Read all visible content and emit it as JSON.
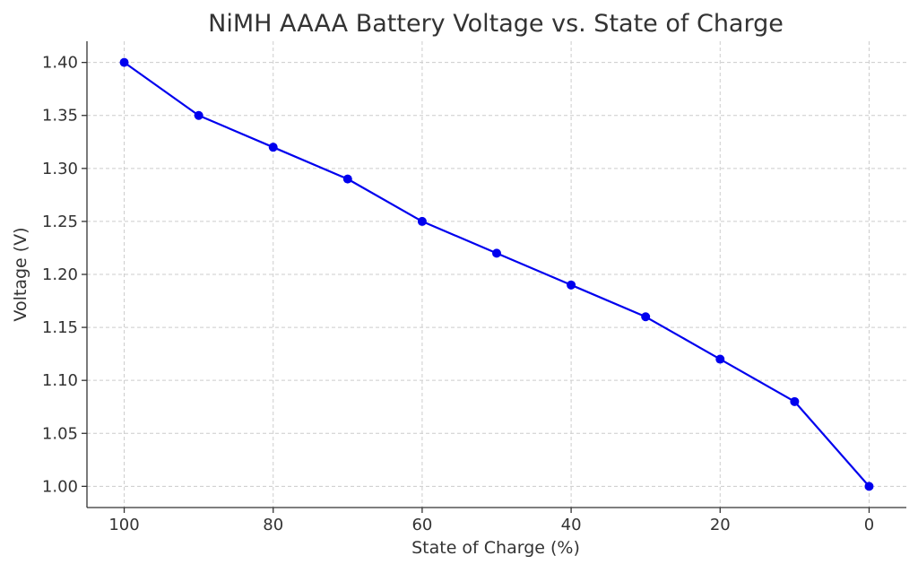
{
  "chart_data": {
    "type": "line",
    "title": "NiMH AAAA Battery Voltage vs. State of Charge",
    "xlabel": "State of Charge (%)",
    "ylabel": "Voltage (V)",
    "x_inverted": true,
    "xlim": [
      105,
      -5
    ],
    "ylim": [
      0.98,
      1.42
    ],
    "x_ticks": [
      100,
      80,
      60,
      40,
      20,
      0
    ],
    "x_tick_labels": [
      "100",
      "80",
      "60",
      "40",
      "20",
      "0"
    ],
    "y_ticks": [
      1.0,
      1.05,
      1.1,
      1.15,
      1.2,
      1.25,
      1.3,
      1.35,
      1.4
    ],
    "y_tick_labels": [
      "1.00",
      "1.05",
      "1.10",
      "1.15",
      "1.20",
      "1.25",
      "1.30",
      "1.35",
      "1.40"
    ],
    "grid": true,
    "series": [
      {
        "color": "#0000ee",
        "marker": "circle",
        "x": [
          100,
          90,
          80,
          70,
          60,
          50,
          40,
          30,
          20,
          10,
          0
        ],
        "y": [
          1.4,
          1.35,
          1.32,
          1.29,
          1.25,
          1.22,
          1.19,
          1.16,
          1.12,
          1.08,
          1.0
        ]
      }
    ]
  }
}
